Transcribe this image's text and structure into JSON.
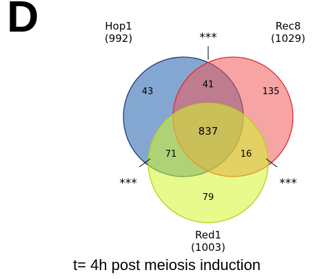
{
  "panel_letter": "D",
  "caption": "t= 4h post meiosis induction",
  "sets": [
    {
      "id": "hop1",
      "name": "Hop1",
      "total": "(992)",
      "fill": "#1f5fab",
      "stroke": "#173c7a"
    },
    {
      "id": "rec8",
      "name": "Rec8",
      "total": "(1029)",
      "fill": "#f05a5a",
      "stroke": "#e8262a"
    },
    {
      "id": "red1",
      "name": "Red1",
      "total": "(1003)",
      "fill": "#d6f52e",
      "stroke": "#b4d21c"
    }
  ],
  "regions": {
    "hop1_only": "43",
    "rec8_only": "135",
    "red1_only": "79",
    "hop1_rec8": "41",
    "hop1_red1": "71",
    "rec8_red1": "16",
    "all_three": "837"
  },
  "significance": {
    "hop1_rec8": "***",
    "hop1_red1": "***",
    "rec8_red1": "***"
  }
}
